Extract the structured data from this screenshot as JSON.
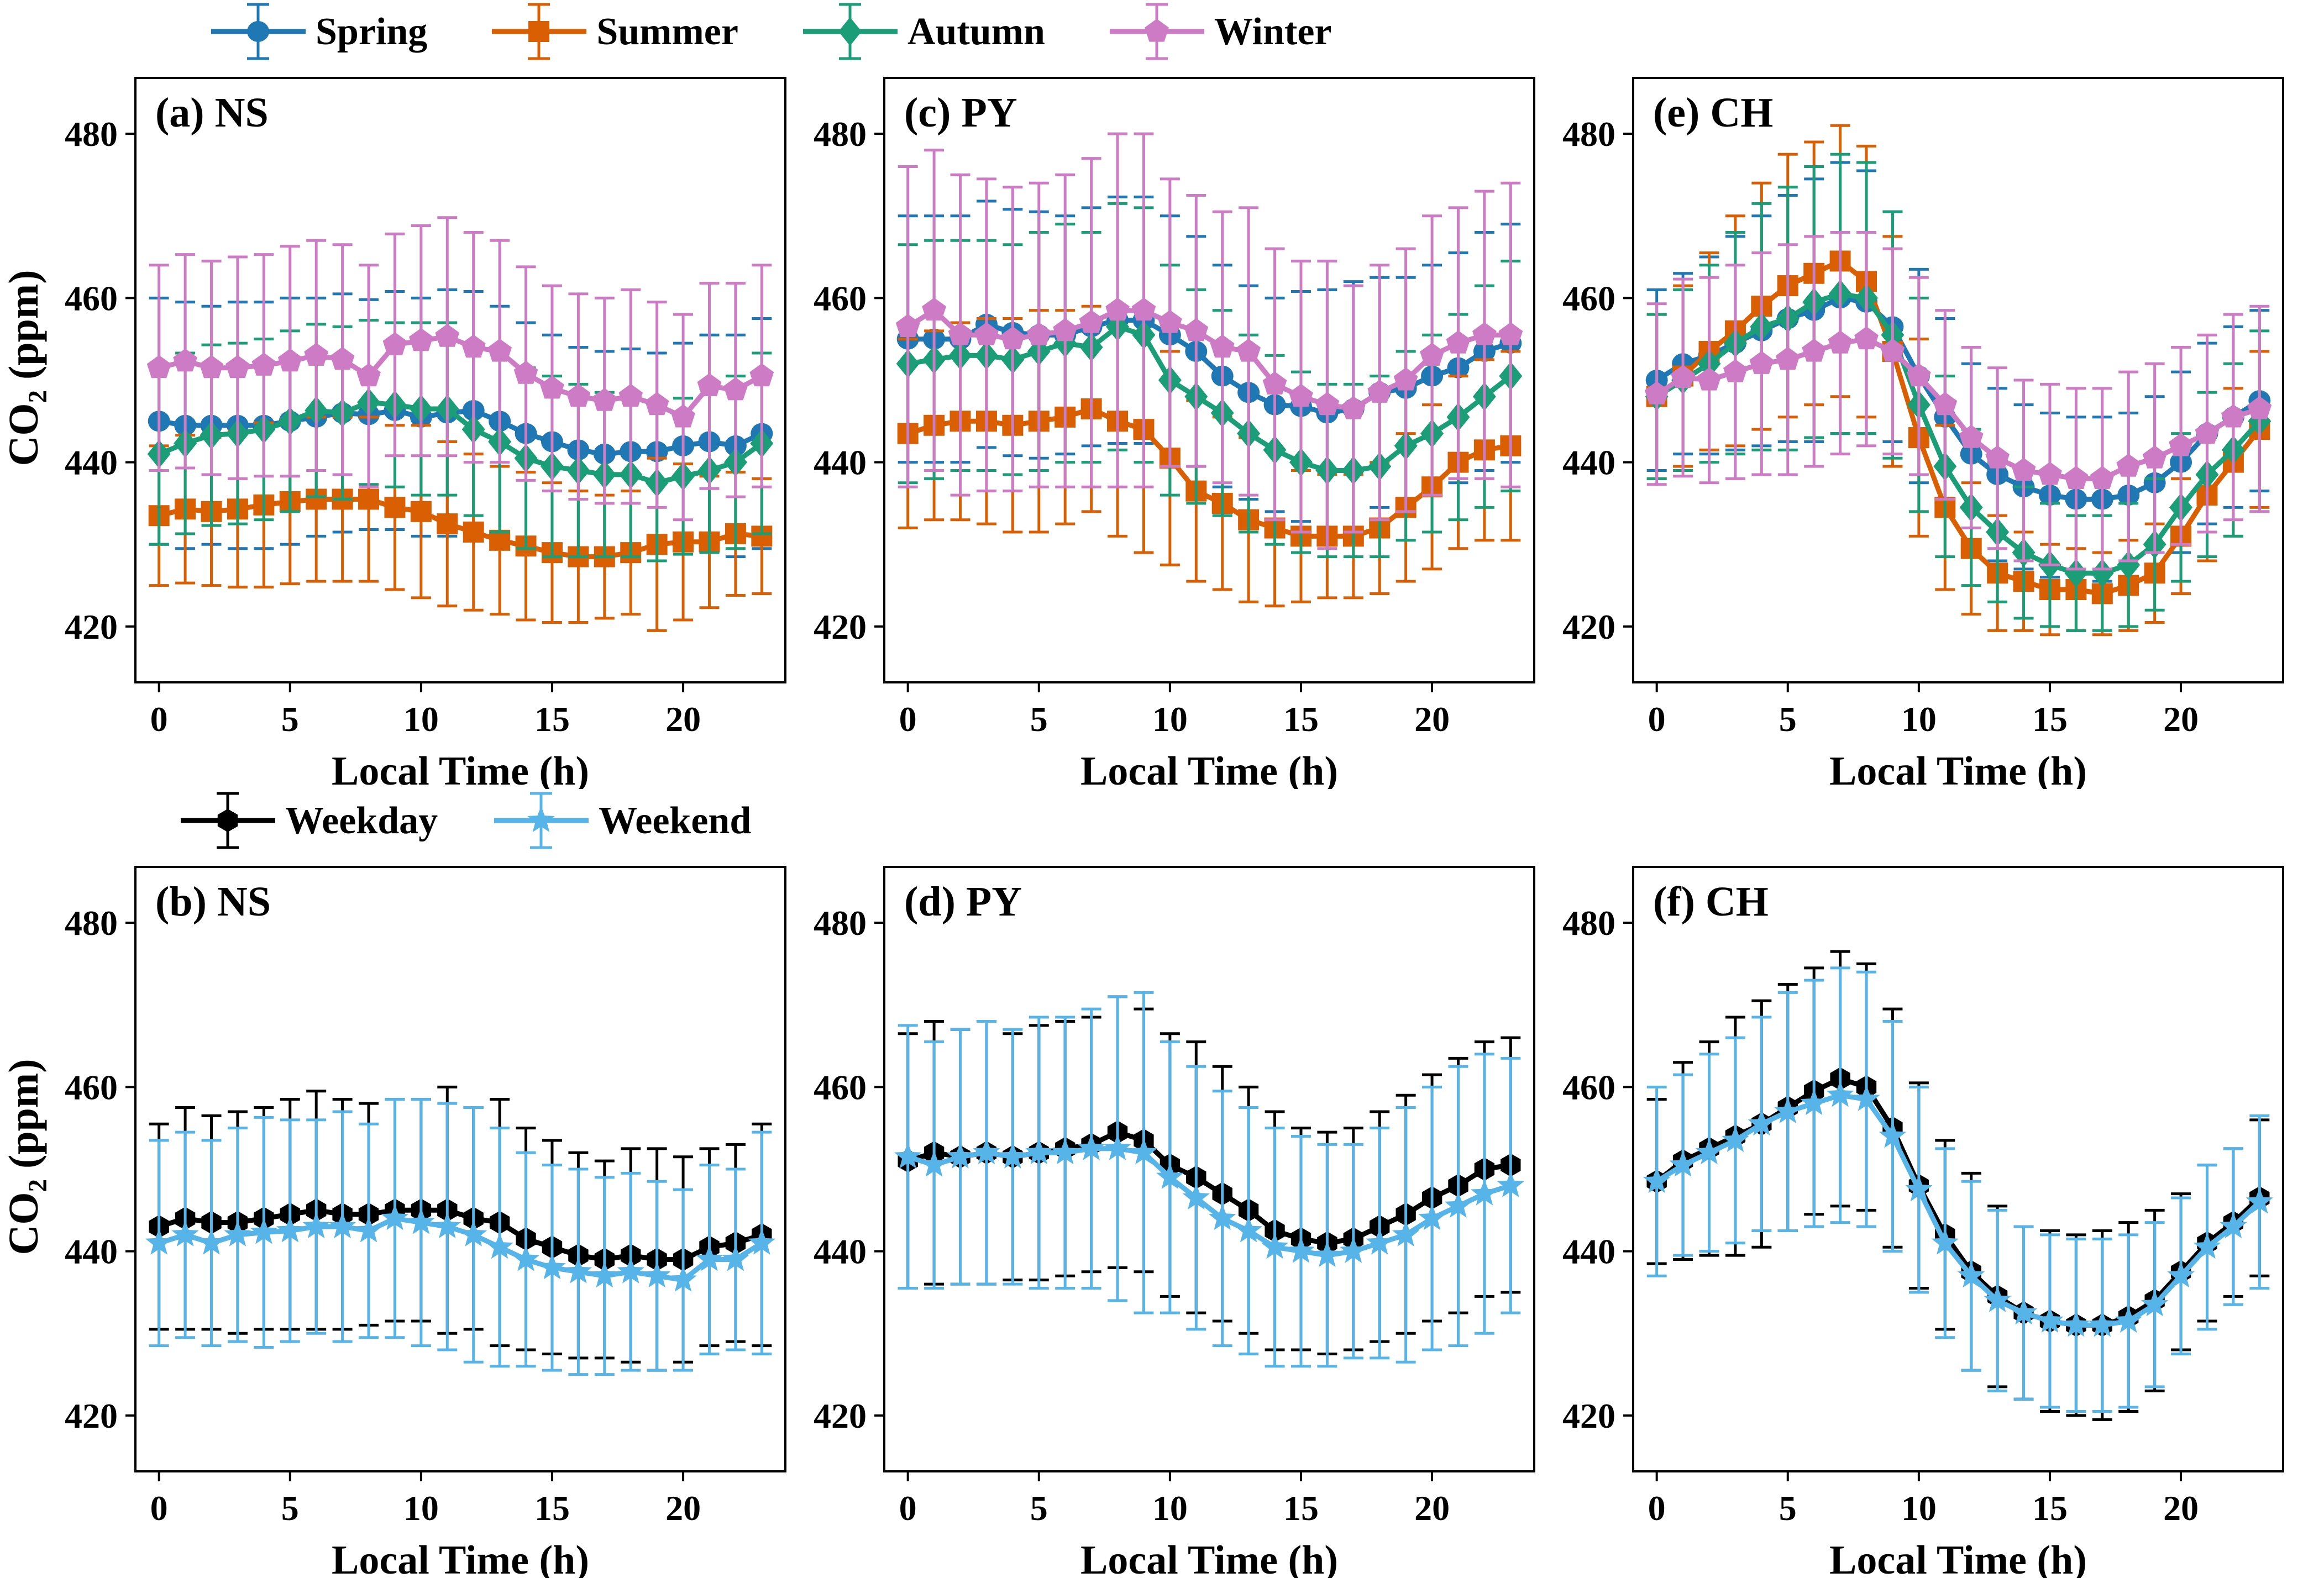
{
  "figure": {
    "xlabel": "Local Time (h)",
    "ylabel": {
      "prefix": "CO",
      "sub": "2",
      "suffix": " (ppm)"
    },
    "x": [
      0,
      1,
      2,
      3,
      4,
      5,
      6,
      7,
      8,
      9,
      10,
      11,
      12,
      13,
      14,
      15,
      16,
      17,
      18,
      19,
      20,
      21,
      22,
      23
    ],
    "xticks": [
      0,
      5,
      10,
      15,
      20
    ],
    "yticks": [
      420,
      440,
      460,
      480
    ],
    "xlim": [
      -0.9,
      23.9
    ],
    "ylim": [
      413.2,
      486.8
    ],
    "grid": false
  },
  "legends": {
    "seasons": [
      {
        "name": "Spring",
        "color": "#1f77b4",
        "marker": "circle"
      },
      {
        "name": "Summer",
        "color": "#d95f02",
        "marker": "square"
      },
      {
        "name": "Autumn",
        "color": "#1b9e77",
        "marker": "diamond"
      },
      {
        "name": "Winter",
        "color": "#cc7bc4",
        "marker": "pentagon"
      }
    ],
    "daytype": [
      {
        "name": "Weekday",
        "color": "#000000",
        "marker": "hexagon"
      },
      {
        "name": "Weekend",
        "color": "#56b4e9",
        "marker": "star"
      }
    ]
  },
  "chart_data": [
    {
      "type": "line+errorbar",
      "label": "(a) NS",
      "legend": "seasons",
      "series": [
        {
          "name": "Spring",
          "values": [
            445,
            444.5,
            444.5,
            444.5,
            444.5,
            445,
            445.5,
            446,
            445.8,
            446.3,
            445.5,
            446,
            446.3,
            445,
            443.5,
            442.5,
            441.5,
            441,
            441.3,
            441.3,
            442,
            442.5,
            442,
            443.5
          ],
          "err": [
            15,
            15,
            14.5,
            15,
            15,
            15,
            14.5,
            14.5,
            14,
            14.5,
            14.5,
            15,
            14.5,
            14,
            13.5,
            13,
            12.5,
            12.5,
            12.5,
            12,
            12.5,
            13,
            13.5,
            14
          ]
        },
        {
          "name": "Summer",
          "values": [
            433.5,
            434.3,
            434,
            434.3,
            434.8,
            435.2,
            435.5,
            435.5,
            435.5,
            434.5,
            434,
            432.5,
            431.5,
            430.5,
            429.8,
            429,
            428.5,
            428.5,
            429,
            430,
            430.3,
            430.3,
            431.3,
            431
          ],
          "err": [
            8.5,
            9,
            9,
            9.5,
            10,
            10,
            10,
            10,
            10,
            10,
            10.5,
            10,
            9.5,
            9,
            9,
            8.5,
            8,
            7.5,
            7.5,
            10.5,
            9.5,
            8,
            7.5,
            7
          ]
        },
        {
          "name": "Autumn",
          "values": [
            441,
            442.3,
            443.3,
            443.5,
            444,
            445,
            446.3,
            446,
            447.3,
            447,
            446.5,
            446.5,
            444,
            442.5,
            440.5,
            439.5,
            439,
            438.5,
            438.5,
            437.5,
            438.3,
            439,
            440,
            442.3
          ],
          "err": [
            11,
            11,
            11,
            11,
            11,
            11,
            10.5,
            10.5,
            10,
            10,
            10.5,
            10.5,
            10.5,
            11,
            11,
            11,
            10.5,
            10,
            10,
            9.5,
            9.5,
            10,
            10.5,
            11
          ]
        },
        {
          "name": "Winter",
          "values": [
            451.5,
            452.3,
            451.5,
            451.5,
            451.8,
            452.3,
            453,
            452.5,
            450.5,
            454.3,
            454.8,
            455.3,
            454,
            453.5,
            450.8,
            449,
            448,
            447.5,
            448,
            447,
            445.5,
            449.3,
            448.8,
            450.5
          ],
          "err": [
            12.5,
            13,
            13,
            13.5,
            13.5,
            14,
            14,
            14,
            13.5,
            13.5,
            14,
            14.5,
            14,
            13.5,
            13,
            12.5,
            12.5,
            12.5,
            13,
            12.5,
            12.5,
            12.5,
            13,
            13.5
          ]
        }
      ]
    },
    {
      "type": "line+errorbar",
      "label": "(c) PY",
      "legend": "seasons",
      "series": [
        {
          "name": "Spring",
          "values": [
            455,
            455,
            455,
            456.8,
            455.8,
            455.5,
            455.5,
            456.5,
            457.3,
            457.3,
            455.5,
            453.5,
            450.5,
            448.5,
            447,
            446.8,
            446,
            446.5,
            448.5,
            449,
            450.5,
            451.5,
            453.5,
            454.5
          ],
          "err": [
            15,
            15,
            15,
            15,
            15,
            15,
            14.5,
            14.5,
            15,
            15,
            14.5,
            14,
            13.5,
            13,
            13,
            14,
            15,
            15.5,
            14,
            13.5,
            13.5,
            14,
            14.5,
            14.5
          ]
        },
        {
          "name": "Summer",
          "values": [
            443.5,
            444.5,
            445,
            445,
            444.5,
            445,
            445.5,
            446.5,
            445,
            444,
            440.5,
            436.5,
            435,
            433,
            432,
            431,
            431,
            431,
            432,
            434.5,
            437,
            440,
            441.5,
            442
          ],
          "err": [
            11.5,
            11.5,
            12,
            12.5,
            13,
            13.5,
            13,
            12.5,
            14,
            15,
            13,
            11,
            10.5,
            10,
            9.5,
            8,
            7.5,
            7.5,
            8,
            9,
            10,
            10.5,
            11,
            11.5
          ]
        },
        {
          "name": "Autumn",
          "values": [
            452,
            452.5,
            453,
            453,
            452.5,
            453.5,
            454.5,
            454,
            456.5,
            455.5,
            450,
            448,
            446,
            443.5,
            441.5,
            440,
            439,
            439,
            439.5,
            442,
            443.5,
            445.5,
            448,
            450.5
          ],
          "err": [
            14.5,
            14.5,
            14,
            14,
            14,
            14.5,
            14.5,
            14,
            15,
            15.5,
            14,
            13,
            12.5,
            12,
            11.5,
            11,
            10.5,
            10.5,
            11,
            11.5,
            12,
            12.5,
            13.5,
            14
          ]
        },
        {
          "name": "Winter",
          "values": [
            456.5,
            458.5,
            455.5,
            455.5,
            455,
            455.5,
            456,
            457,
            458.5,
            458.5,
            457,
            456,
            454,
            453.5,
            449.5,
            448,
            447,
            446.5,
            448.5,
            450,
            453,
            454.5,
            455.5,
            455.5
          ],
          "err": [
            19.5,
            19.5,
            19.5,
            19,
            18.5,
            18.5,
            19,
            20,
            21.5,
            21.5,
            17.5,
            16.5,
            16.5,
            17.5,
            16.5,
            16.5,
            17.5,
            15,
            15.5,
            16,
            17,
            16.5,
            17.5,
            18.5
          ]
        }
      ]
    },
    {
      "type": "line+errorbar",
      "label": "(e) CH",
      "legend": "seasons",
      "series": [
        {
          "name": "Spring",
          "values": [
            450,
            452,
            453,
            454.5,
            456,
            457.5,
            458.5,
            460,
            459.5,
            456.5,
            450.5,
            445.5,
            441,
            438.5,
            437,
            436,
            435.5,
            435.5,
            436,
            437.5,
            440,
            443.5,
            445.5,
            447.5
          ],
          "err": [
            11,
            11,
            12,
            13,
            14,
            15,
            16,
            16.5,
            16,
            14,
            13,
            12,
            11,
            10.5,
            10,
            10,
            10,
            10,
            10,
            10.5,
            11,
            11,
            11,
            11
          ]
        },
        {
          "name": "Summer",
          "values": [
            448,
            450.5,
            453.5,
            456,
            459,
            461.5,
            463,
            464.5,
            462,
            453.5,
            443,
            434.5,
            429.5,
            426.5,
            425.5,
            424.5,
            424.5,
            424,
            425,
            426.5,
            431,
            436,
            440,
            444
          ],
          "err": [
            10,
            11,
            12,
            14,
            15,
            16,
            16,
            16.5,
            16.5,
            14,
            12,
            10,
            8,
            7,
            6,
            5.5,
            5,
            5,
            5.5,
            6,
            7,
            8,
            9,
            9.5
          ]
        },
        {
          "name": "Autumn",
          "values": [
            448,
            450,
            452,
            454.5,
            456.5,
            457.5,
            459.5,
            460.5,
            460,
            455.5,
            447,
            439.5,
            434.5,
            431.5,
            429,
            427.5,
            426.5,
            426.5,
            427.5,
            430,
            434.5,
            438.5,
            441.5,
            445
          ],
          "err": [
            10,
            11,
            12,
            13.5,
            15,
            16,
            16.5,
            17,
            16.5,
            15,
            13,
            11,
            9.5,
            8.5,
            8,
            7.5,
            7,
            7,
            7.5,
            8,
            9,
            10,
            10.5,
            11
          ]
        },
        {
          "name": "Winter",
          "values": [
            448.3,
            450.3,
            450,
            451,
            452,
            452.5,
            453.5,
            454.5,
            455,
            453.5,
            450.5,
            447,
            443,
            440.5,
            439,
            438.5,
            438,
            438,
            439.5,
            440.5,
            442,
            443.5,
            445.5,
            446.5
          ],
          "err": [
            11,
            12,
            12.5,
            13,
            13.5,
            14,
            14,
            13.5,
            13,
            12.5,
            12,
            11.5,
            11,
            11,
            11,
            11,
            11,
            11,
            11.5,
            11.5,
            12,
            12,
            12.5,
            12.5
          ]
        }
      ]
    },
    {
      "type": "line+errorbar",
      "label": "(b) NS",
      "legend": "daytype",
      "series": [
        {
          "name": "Weekday",
          "values": [
            443,
            444,
            443.5,
            443.5,
            444,
            444.5,
            445,
            444.5,
            444.5,
            445,
            445,
            445,
            444,
            443.5,
            441.5,
            440.5,
            439.5,
            439,
            439.5,
            439,
            439,
            440.5,
            441,
            442
          ],
          "err": [
            12.5,
            13.5,
            13,
            13.5,
            13.5,
            14,
            14.5,
            14,
            13.5,
            13.5,
            13.5,
            15,
            13.5,
            15,
            13.5,
            13,
            12.5,
            12,
            13,
            13.5,
            12.5,
            12,
            12,
            13.5
          ]
        },
        {
          "name": "Weekend",
          "values": [
            441,
            442,
            441,
            442,
            442.3,
            442.5,
            443,
            443,
            442.5,
            444,
            443.5,
            443,
            442,
            440.5,
            439,
            438,
            437.5,
            437,
            437.5,
            437,
            436.5,
            439,
            439,
            441
          ],
          "err": [
            12.5,
            12.5,
            12.5,
            13,
            14,
            13.5,
            13,
            14,
            13,
            14.5,
            15,
            15,
            15.5,
            14.5,
            13,
            12.5,
            12.5,
            12,
            12,
            11.5,
            11,
            11.5,
            11,
            13.5
          ]
        }
      ]
    },
    {
      "type": "line+errorbar",
      "label": "(d) PY",
      "legend": "daytype",
      "series": [
        {
          "name": "Weekday",
          "values": [
            451,
            452,
            451.5,
            452,
            451.5,
            452,
            452.5,
            453,
            454.5,
            453.5,
            450.5,
            449,
            447,
            445,
            442.5,
            441.5,
            441,
            441.5,
            443,
            444.5,
            446.5,
            448,
            450,
            450.5
          ],
          "err": [
            15.5,
            16,
            15.5,
            16,
            15,
            15.5,
            15.5,
            15.5,
            16.5,
            16,
            16,
            16.5,
            15.5,
            15,
            14.5,
            13.5,
            13.5,
            13.5,
            14,
            14.5,
            15,
            15.5,
            15.5,
            15.5
          ]
        },
        {
          "name": "Weekend",
          "values": [
            451.5,
            450.5,
            451.5,
            452,
            451.5,
            452,
            452,
            452.5,
            452.5,
            452,
            449,
            446.5,
            444,
            442.5,
            440.5,
            440,
            439.5,
            440,
            441,
            442,
            444,
            445.5,
            447,
            448
          ],
          "err": [
            16,
            15,
            15.5,
            16,
            15.5,
            16.5,
            16.5,
            17,
            18.5,
            19.5,
            16.5,
            16,
            15.5,
            15,
            14.5,
            14,
            13.5,
            13,
            14,
            15.5,
            16,
            17,
            17,
            15.5
          ]
        }
      ]
    },
    {
      "type": "line+errorbar",
      "label": "(f) CH",
      "legend": "daytype",
      "series": [
        {
          "name": "Weekday",
          "values": [
            448.5,
            451,
            452.5,
            454,
            455.5,
            457.5,
            459.5,
            461,
            460,
            455,
            448,
            442,
            437.5,
            434.5,
            432.5,
            431.5,
            431,
            431,
            432,
            434,
            437.5,
            441,
            443.5,
            446.5
          ],
          "err": [
            10,
            12,
            13,
            14.5,
            15,
            15,
            15,
            15.5,
            15,
            14.5,
            12.5,
            11.5,
            12,
            11,
            10.5,
            11,
            11,
            11.5,
            11.5,
            11,
            9.5,
            9.5,
            9,
            9.5
          ]
        },
        {
          "name": "Weekend",
          "values": [
            448.5,
            450.5,
            452,
            453.5,
            455.5,
            457,
            458,
            459,
            458.5,
            454,
            447.5,
            441,
            437,
            434,
            432.5,
            431.5,
            431,
            431,
            431.5,
            433.5,
            437,
            440.5,
            443,
            446
          ],
          "err": [
            11.5,
            11,
            12,
            12.5,
            13,
            14.5,
            15,
            15.5,
            15.5,
            14,
            12.5,
            11.5,
            11.5,
            11,
            10.5,
            10.5,
            10.5,
            10.5,
            10.5,
            10,
            9.5,
            10,
            9.5,
            10.5
          ]
        }
      ]
    }
  ]
}
